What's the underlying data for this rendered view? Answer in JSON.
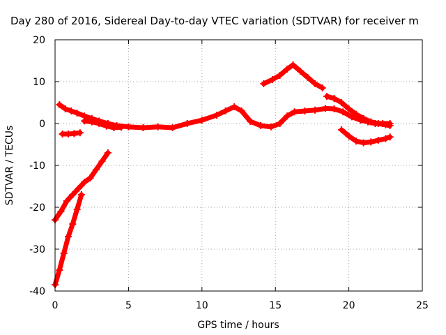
{
  "chart_data": {
    "type": "scatter",
    "title": "Day 280 of 2016, Sidereal Day-to-day VTEC variation (SDTVAR) for receiver m",
    "xlabel": "GPS time / hours",
    "ylabel": "SDTVAR / TECUs",
    "xlim": [
      0,
      25
    ],
    "ylim": [
      -40,
      20
    ],
    "xticks": [
      0,
      5,
      10,
      15,
      20,
      25
    ],
    "yticks": [
      -40,
      -30,
      -20,
      -10,
      0,
      10,
      20
    ],
    "xtick_labels": [
      "0",
      "5",
      "10",
      "15",
      "20",
      "25"
    ],
    "ytick_labels": [
      "-40",
      "-30",
      "-20",
      "-10",
      "0",
      "10",
      "20"
    ],
    "grid": true,
    "marker_color": "#ff0000",
    "series": [
      {
        "x": [
          0.0,
          0.3,
          0.6,
          0.9,
          1.2,
          1.5,
          1.8
        ],
        "y": [
          -38.5,
          -35,
          -31,
          -27,
          -24,
          -20.5,
          -17
        ]
      },
      {
        "x": [
          0.0,
          0.4,
          0.8,
          1.2,
          1.6,
          2.0,
          2.4,
          2.8,
          3.2,
          3.6
        ],
        "y": [
          -23,
          -21,
          -18.5,
          -17,
          -15.5,
          -14,
          -13,
          -11,
          -9,
          -7
        ]
      },
      {
        "x": [
          0.5,
          0.9,
          1.3,
          1.7
        ],
        "y": [
          -2.5,
          -2.5,
          -2.4,
          -2.2
        ]
      },
      {
        "x": [
          0.3,
          0.7,
          1.1,
          1.5,
          2.0,
          2.5,
          3.0,
          3.6,
          4.2,
          5.0,
          6.0,
          7.0,
          8.0,
          9.0,
          10.0,
          11.0,
          11.6,
          12.2,
          12.7,
          13.3,
          14.0,
          14.7,
          15.3,
          15.8,
          16.3,
          17.0,
          17.7,
          18.4,
          19.0,
          19.6,
          20.2,
          20.8,
          21.3,
          21.8,
          22.3,
          22.8
        ],
        "y": [
          4.5,
          3.5,
          3.0,
          2.5,
          1.8,
          1.2,
          0.6,
          0.0,
          -0.5,
          -0.8,
          -1.0,
          -0.8,
          -1.0,
          0.0,
          0.8,
          2.0,
          3.0,
          4.0,
          3.0,
          0.5,
          -0.5,
          -0.8,
          0.0,
          1.8,
          2.8,
          3.0,
          3.2,
          3.6,
          3.5,
          2.8,
          1.6,
          0.8,
          0.4,
          0.0,
          0.0,
          0.0
        ]
      },
      {
        "x": [
          2.0,
          2.5,
          3.0,
          3.5,
          4.0,
          4.5
        ],
        "y": [
          0.6,
          0.4,
          0.0,
          -0.6,
          -1.0,
          -0.9
        ]
      },
      {
        "x": [
          14.2,
          14.8,
          15.3,
          15.8,
          16.2,
          16.7,
          17.2,
          17.7,
          18.2
        ],
        "y": [
          9.5,
          10.5,
          11.5,
          13.0,
          14.0,
          12.5,
          11.0,
          9.5,
          8.5
        ]
      },
      {
        "x": [
          18.5,
          19.0,
          19.5,
          20.0,
          20.5,
          21.0,
          21.5,
          22.0,
          22.5,
          22.8
        ],
        "y": [
          6.5,
          6.0,
          5.0,
          3.5,
          2.2,
          1.2,
          0.4,
          0.0,
          -0.3,
          -0.5
        ]
      },
      {
        "x": [
          19.5,
          20.0,
          20.5,
          21.0,
          21.5,
          22.0,
          22.5,
          22.8
        ],
        "y": [
          -1.5,
          -3.0,
          -4.2,
          -4.6,
          -4.4,
          -4.0,
          -3.6,
          -3.2
        ]
      }
    ]
  }
}
